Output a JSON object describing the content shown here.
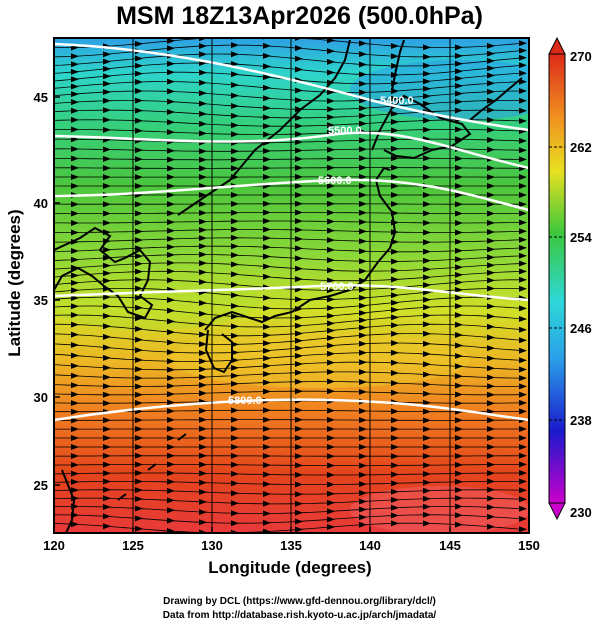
{
  "title": "MSM 18Z13Apr2026 (500.0hPa)",
  "axes": {
    "xlabel": "Longitude (degrees)",
    "ylabel": "Latitude  (degrees)",
    "x_ticks": [
      "120",
      "125",
      "130",
      "135",
      "140",
      "145",
      "150"
    ],
    "y_ticks": [
      "25",
      "30",
      "35",
      "40",
      "45"
    ]
  },
  "colorbar": {
    "labels": [
      "270",
      "262",
      "254",
      "246",
      "238",
      "230"
    ],
    "min": 230,
    "max": 270,
    "colors": [
      "#cc00cc",
      "#1a1acc",
      "#2a9ee8",
      "#2ed8d8",
      "#3cc83c",
      "#e8e020",
      "#f09020",
      "#dd2a1a"
    ]
  },
  "contours": [
    {
      "label": "5400.0"
    },
    {
      "label": "5500.0"
    },
    {
      "label": "5600.0"
    },
    {
      "label": "5700.0"
    },
    {
      "label": "5800.0"
    }
  ],
  "credits": {
    "line1": "Drawing by DCL (https://www.gfd-dennou.org/library/dcl/)",
    "line2": "Data from http://database.rish.kyoto-u.ac.jp/arch/jmadata/"
  }
}
